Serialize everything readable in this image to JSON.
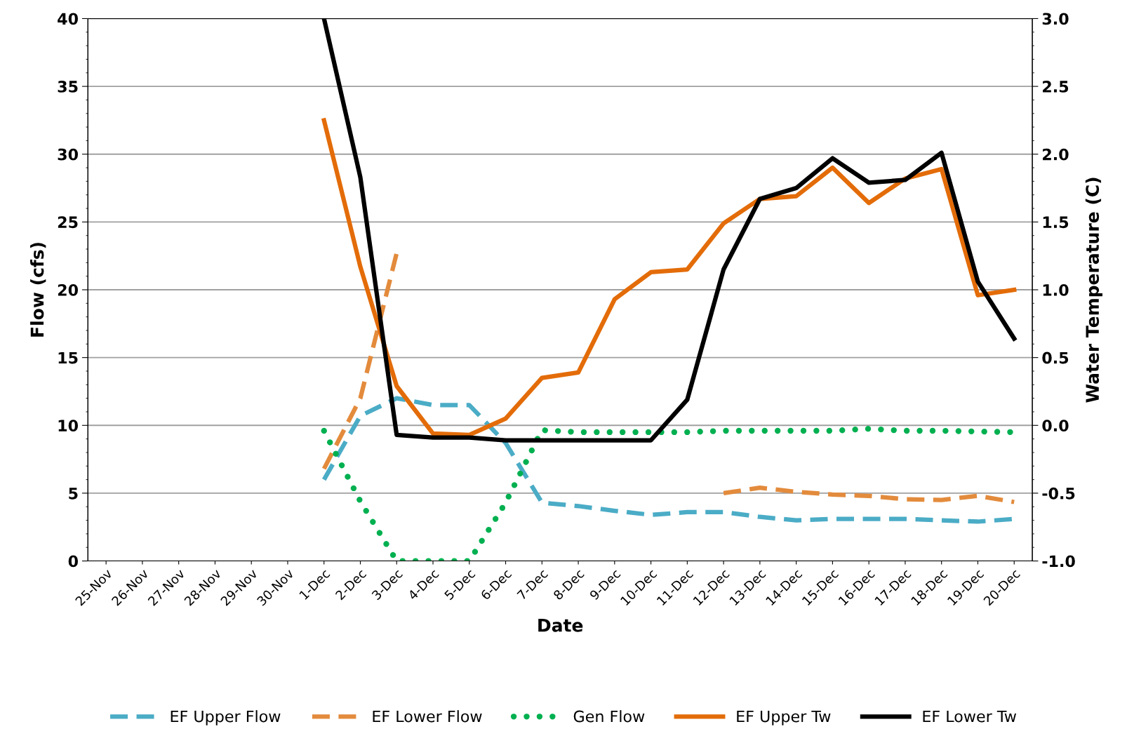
{
  "chart_data": {
    "type": "line",
    "xlabel": "Date",
    "ylabel": "Flow (cfs)",
    "y2label": "Water Temperature (C)",
    "categories": [
      "25-Nov",
      "26-Nov",
      "27-Nov",
      "28-Nov",
      "29-Nov",
      "30-Nov",
      "1-Dec",
      "2-Dec",
      "3-Dec",
      "4-Dec",
      "5-Dec",
      "6-Dec",
      "7-Dec",
      "8-Dec",
      "9-Dec",
      "10-Dec",
      "11-Dec",
      "12-Dec",
      "13-Dec",
      "14-Dec",
      "15-Dec",
      "16-Dec",
      "17-Dec",
      "18-Dec",
      "19-Dec",
      "20-Dec"
    ],
    "ylim": [
      0,
      40
    ],
    "yticks": [
      0,
      5,
      10,
      15,
      20,
      25,
      30,
      35,
      40
    ],
    "y2lim": [
      -1.0,
      3.0
    ],
    "y2ticks": [
      {
        "value": -1.0,
        "label": "-1.0"
      },
      {
        "value": -0.5,
        "label": "-0.5"
      },
      {
        "value": 0.0,
        "label": "0.0"
      },
      {
        "value": 0.5,
        "label": "0.5"
      },
      {
        "value": 1.0,
        "label": "1.0"
      },
      {
        "value": 1.5,
        "label": "1.5"
      },
      {
        "value": 2.0,
        "label": "2.0"
      },
      {
        "value": 2.5,
        "label": "2.5"
      },
      {
        "value": 3.0,
        "label": "3.0"
      }
    ],
    "grid": "y",
    "legend": "bottom",
    "series": [
      {
        "name": "EF Upper Flow",
        "color": "#4bacc6",
        "line_style": "dashed",
        "values": [
          null,
          null,
          null,
          null,
          null,
          null,
          6.0,
          10.7,
          12.0,
          11.5,
          11.5,
          8.7,
          4.3,
          4.05,
          3.7,
          3.4,
          3.6,
          3.6,
          3.25,
          3.0,
          3.1,
          3.1,
          3.1,
          3.0,
          2.9,
          3.1
        ]
      },
      {
        "name": "EF Lower Flow",
        "color": "#e38b3c",
        "line_style": "dashed",
        "values": [
          null,
          null,
          null,
          null,
          null,
          null,
          6.8,
          12.0,
          22.7,
          null,
          null,
          null,
          null,
          null,
          null,
          null,
          null,
          5.0,
          5.4,
          5.1,
          4.9,
          4.8,
          4.55,
          4.5,
          4.8,
          4.35
        ]
      },
      {
        "name": "Gen Flow",
        "color": "#00b050",
        "line_style": "dotted",
        "values": [
          null,
          null,
          null,
          null,
          null,
          null,
          9.6,
          4.4,
          0,
          0,
          0,
          4.3,
          9.65,
          9.5,
          9.5,
          9.5,
          9.5,
          9.6,
          9.6,
          9.6,
          9.6,
          9.75,
          9.6,
          9.6,
          9.55,
          9.5
        ]
      },
      {
        "name": "EF Upper Tw",
        "color": "#e36c09",
        "line_style": "solid",
        "axis": "y2",
        "values": [
          null,
          null,
          null,
          null,
          null,
          null,
          2.25,
          1.17,
          0.29,
          -0.06,
          -0.07,
          0.05,
          0.35,
          0.39,
          0.93,
          1.13,
          1.15,
          1.49,
          1.67,
          1.69,
          1.9,
          1.64,
          1.82,
          1.89,
          0.96,
          1.0
        ]
      },
      {
        "name": "EF Lower Tw",
        "color": "#000000",
        "line_style": "solid",
        "axis": "y2",
        "values": [
          null,
          null,
          null,
          null,
          null,
          null,
          3.0,
          1.83,
          -0.07,
          -0.09,
          -0.09,
          -0.11,
          -0.11,
          -0.11,
          -0.11,
          -0.11,
          0.19,
          1.15,
          1.67,
          1.75,
          1.97,
          1.79,
          1.81,
          2.01,
          1.06,
          0.64
        ]
      }
    ]
  }
}
